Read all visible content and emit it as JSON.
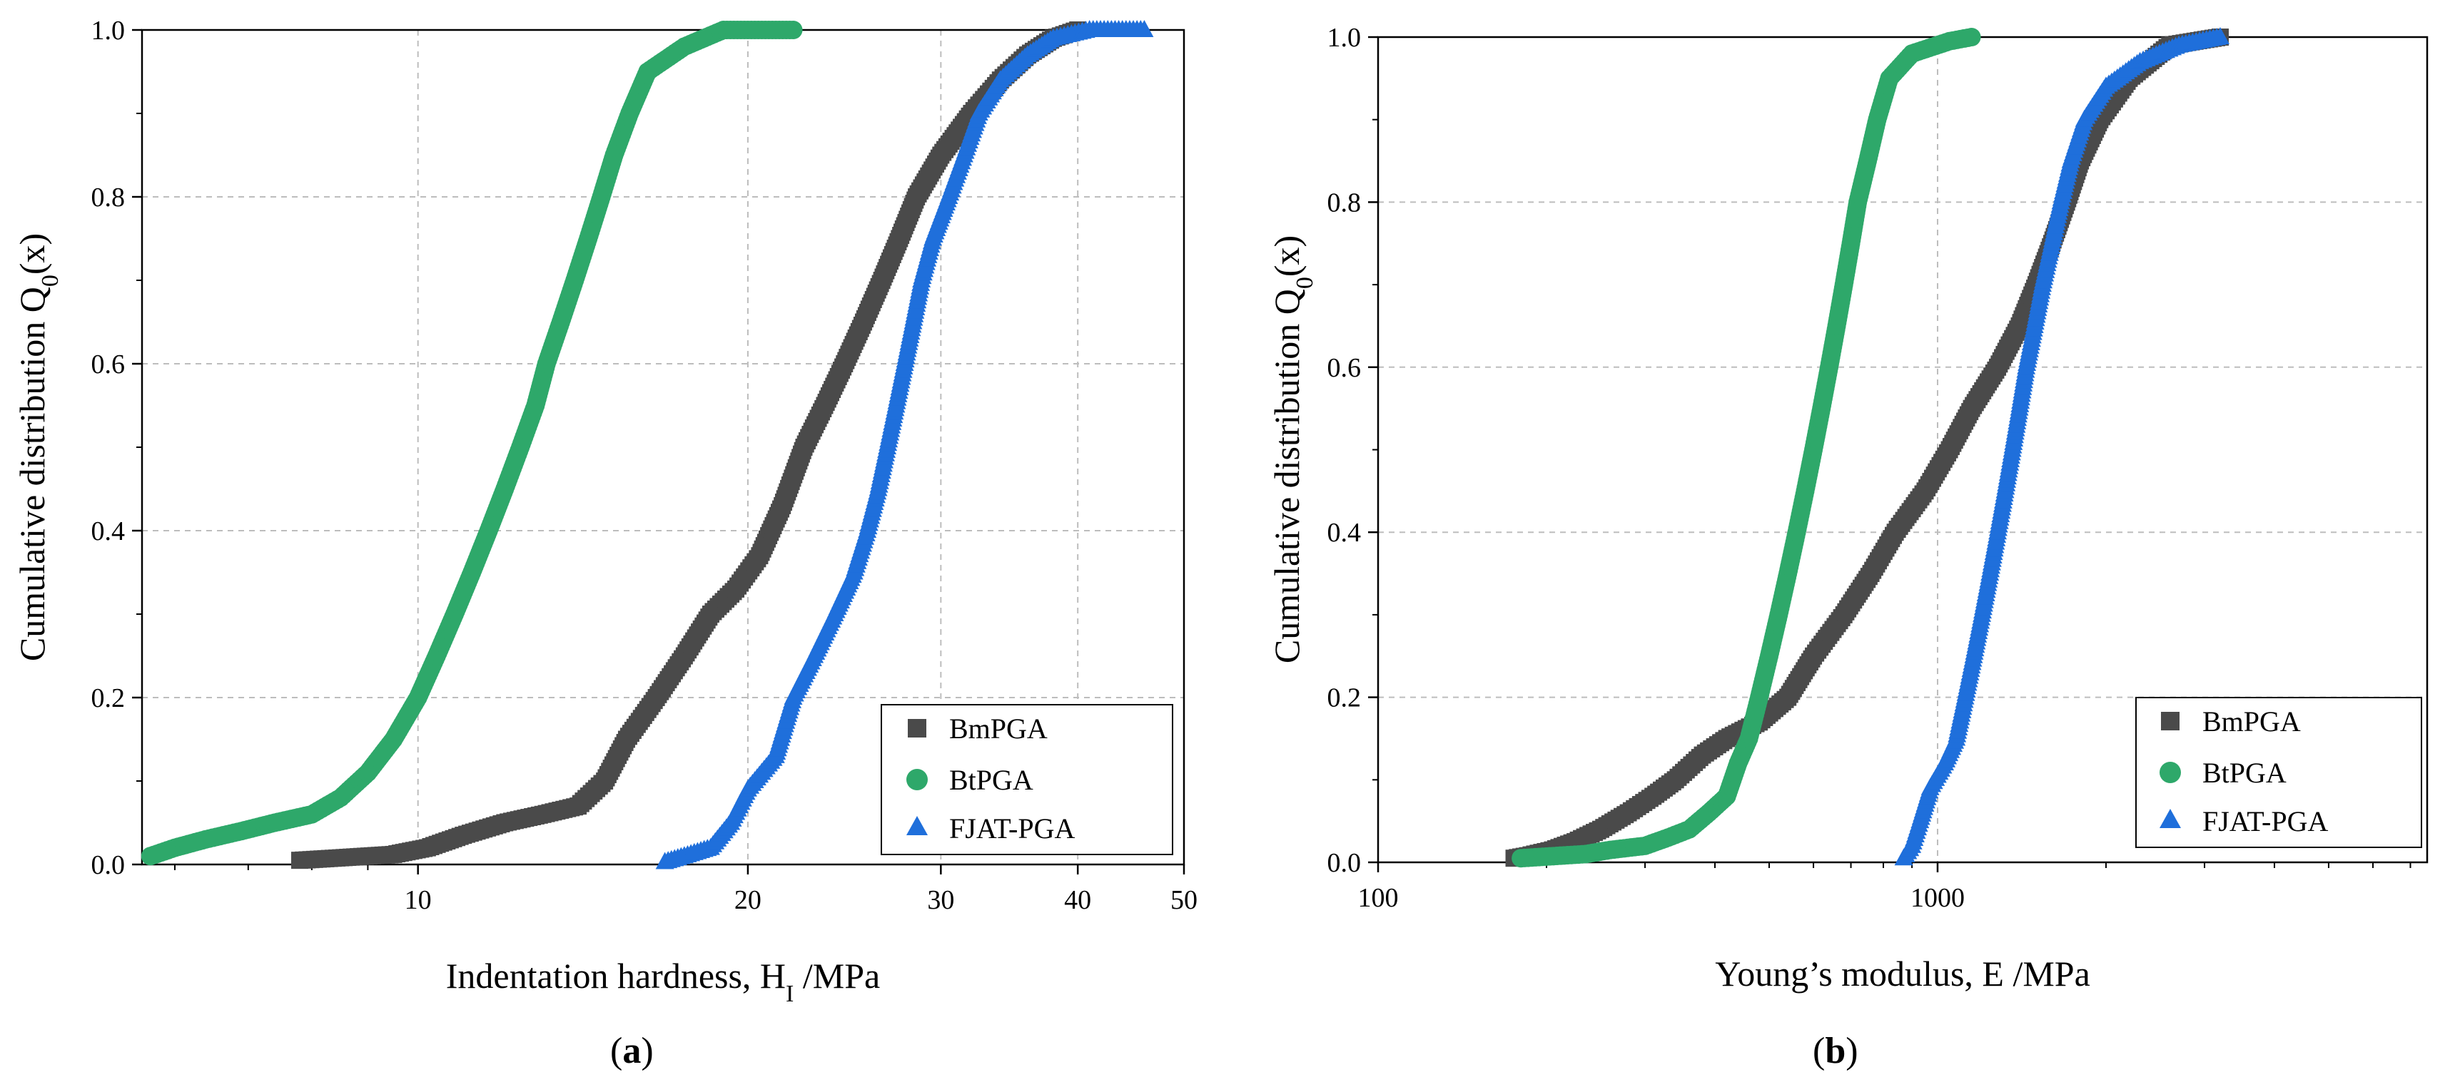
{
  "chart_data": [
    {
      "type": "scatter",
      "panel_label": "a",
      "xlabel_main": "Indentation hardness, H",
      "xlabel_sub": "I",
      "xlabel_unit": " /MPa",
      "ylabel_main": "Cumulative distribution Q",
      "ylabel_sub": "0",
      "ylabel_tail": "(x)",
      "x_scale": "log",
      "xlim": [
        5.6,
        50
      ],
      "ylim": [
        0,
        1
      ],
      "x_ticks": [
        10,
        20,
        30,
        40,
        50
      ],
      "x_tick_labels": [
        "10",
        "20",
        "30",
        "40",
        "50"
      ],
      "y_ticks": [
        0,
        0.2,
        0.4,
        0.6,
        0.8,
        1.0
      ],
      "y_tick_labels": [
        "0.0",
        "0.2",
        "0.4",
        "0.6",
        "0.8",
        "1.0"
      ],
      "grid": true,
      "legend_position": "bottom-right",
      "series": [
        {
          "name": "BmPGA",
          "marker": "square",
          "color": "#4a4a4a",
          "points": [
            [
              7.8,
              0.005
            ],
            [
              8.5,
              0.008
            ],
            [
              9.5,
              0.012
            ],
            [
              10.2,
              0.02
            ],
            [
              11,
              0.035
            ],
            [
              12,
              0.05
            ],
            [
              13,
              0.06
            ],
            [
              14,
              0.07
            ],
            [
              14.8,
              0.1
            ],
            [
              15.5,
              0.15
            ],
            [
              16.5,
              0.2
            ],
            [
              17.5,
              0.25
            ],
            [
              18.5,
              0.3
            ],
            [
              19.5,
              0.33
            ],
            [
              20.5,
              0.37
            ],
            [
              21.5,
              0.43
            ],
            [
              22.5,
              0.5
            ],
            [
              23.5,
              0.55
            ],
            [
              24.5,
              0.6
            ],
            [
              25.5,
              0.65
            ],
            [
              26.5,
              0.7
            ],
            [
              27.5,
              0.75
            ],
            [
              28.5,
              0.8
            ],
            [
              30,
              0.85
            ],
            [
              32,
              0.9
            ],
            [
              34,
              0.94
            ],
            [
              36,
              0.97
            ],
            [
              38,
              0.99
            ],
            [
              40,
              1.0
            ]
          ]
        },
        {
          "name": "BtPGA",
          "marker": "circle",
          "color": "#2ea86a",
          "points": [
            [
              5.7,
              0.01
            ],
            [
              6.0,
              0.02
            ],
            [
              6.4,
              0.03
            ],
            [
              6.9,
              0.04
            ],
            [
              7.4,
              0.05
            ],
            [
              8.0,
              0.06
            ],
            [
              8.5,
              0.08
            ],
            [
              9.0,
              0.11
            ],
            [
              9.5,
              0.15
            ],
            [
              10,
              0.2
            ],
            [
              10.4,
              0.25
            ],
            [
              10.8,
              0.3
            ],
            [
              11.2,
              0.35
            ],
            [
              11.6,
              0.4
            ],
            [
              12.0,
              0.45
            ],
            [
              12.4,
              0.5
            ],
            [
              12.8,
              0.55
            ],
            [
              13.1,
              0.6
            ],
            [
              13.5,
              0.65
            ],
            [
              13.9,
              0.7
            ],
            [
              14.3,
              0.75
            ],
            [
              14.7,
              0.8
            ],
            [
              15.1,
              0.85
            ],
            [
              15.6,
              0.9
            ],
            [
              16.2,
              0.95
            ],
            [
              17.5,
              0.98
            ],
            [
              19,
              1.0
            ],
            [
              22,
              1.0
            ]
          ]
        },
        {
          "name": "FJAT-PGA",
          "marker": "triangle",
          "color": "#1f6fdb",
          "points": [
            [
              16.8,
              0.003
            ],
            [
              17.5,
              0.01
            ],
            [
              18.5,
              0.02
            ],
            [
              19.3,
              0.05
            ],
            [
              20.0,
              0.09
            ],
            [
              21.2,
              0.13
            ],
            [
              22,
              0.2
            ],
            [
              23,
              0.25
            ],
            [
              24,
              0.3
            ],
            [
              25,
              0.35
            ],
            [
              25.7,
              0.4
            ],
            [
              26.3,
              0.45
            ],
            [
              26.8,
              0.5
            ],
            [
              27.3,
              0.55
            ],
            [
              27.8,
              0.6
            ],
            [
              28.3,
              0.65
            ],
            [
              28.8,
              0.7
            ],
            [
              29.5,
              0.75
            ],
            [
              30.5,
              0.8
            ],
            [
              31.5,
              0.85
            ],
            [
              32.5,
              0.9
            ],
            [
              34,
              0.94
            ],
            [
              36,
              0.97
            ],
            [
              38,
              0.99
            ],
            [
              41,
              1.0
            ],
            [
              46,
              1.0
            ]
          ]
        }
      ]
    },
    {
      "type": "scatter",
      "panel_label": "b",
      "xlabel": "Young’s modulus, E /MPa",
      "ylabel_main": "Cumulative distribution Q",
      "ylabel_sub": "0",
      "ylabel_tail": "(x)",
      "x_scale": "log",
      "xlim": [
        100,
        7500
      ],
      "ylim": [
        0,
        1
      ],
      "x_ticks": [
        100,
        1000
      ],
      "x_tick_labels": [
        "100",
        "1000"
      ],
      "y_ticks": [
        0,
        0.2,
        0.4,
        0.6,
        0.8,
        1.0
      ],
      "y_tick_labels": [
        "0.0",
        "0.2",
        "0.4",
        "0.6",
        "0.8",
        "1.0"
      ],
      "grid": true,
      "legend_position": "bottom-right",
      "series": [
        {
          "name": "BmPGA",
          "marker": "square",
          "color": "#4a4a4a",
          "points": [
            [
              175,
              0.005
            ],
            [
              185,
              0.008
            ],
            [
              205,
              0.015
            ],
            [
              225,
              0.025
            ],
            [
              250,
              0.04
            ],
            [
              280,
              0.06
            ],
            [
              310,
              0.08
            ],
            [
              340,
              0.1
            ],
            [
              380,
              0.13
            ],
            [
              420,
              0.15
            ],
            [
              480,
              0.17
            ],
            [
              540,
              0.2
            ],
            [
              600,
              0.25
            ],
            [
              680,
              0.3
            ],
            [
              760,
              0.35
            ],
            [
              840,
              0.4
            ],
            [
              950,
              0.45
            ],
            [
              1050,
              0.5
            ],
            [
              1150,
              0.55
            ],
            [
              1280,
              0.6
            ],
            [
              1400,
              0.65
            ],
            [
              1500,
              0.7
            ],
            [
              1600,
              0.75
            ],
            [
              1700,
              0.8
            ],
            [
              1800,
              0.85
            ],
            [
              1950,
              0.9
            ],
            [
              2200,
              0.95
            ],
            [
              2600,
              0.99
            ],
            [
              3200,
              1.0
            ]
          ]
        },
        {
          "name": "BtPGA",
          "marker": "circle",
          "color": "#2ea86a",
          "points": [
            [
              180,
              0.005
            ],
            [
              235,
              0.01
            ],
            [
              260,
              0.015
            ],
            [
              300,
              0.02
            ],
            [
              330,
              0.03
            ],
            [
              360,
              0.04
            ],
            [
              390,
              0.06
            ],
            [
              420,
              0.08
            ],
            [
              440,
              0.12
            ],
            [
              460,
              0.15
            ],
            [
              480,
              0.2
            ],
            [
              500,
              0.25
            ],
            [
              520,
              0.3
            ],
            [
              540,
              0.35
            ],
            [
              560,
              0.4
            ],
            [
              580,
              0.45
            ],
            [
              600,
              0.5
            ],
            [
              620,
              0.55
            ],
            [
              640,
              0.6
            ],
            [
              660,
              0.65
            ],
            [
              680,
              0.7
            ],
            [
              700,
              0.75
            ],
            [
              720,
              0.8
            ],
            [
              750,
              0.85
            ],
            [
              780,
              0.9
            ],
            [
              820,
              0.95
            ],
            [
              900,
              0.98
            ],
            [
              1050,
              0.995
            ],
            [
              1150,
              1.0
            ]
          ]
        },
        {
          "name": "FJAT-PGA",
          "marker": "triangle",
          "color": "#1f6fdb",
          "points": [
            [
              870,
              0.005
            ],
            [
              900,
              0.02
            ],
            [
              930,
              0.05
            ],
            [
              970,
              0.09
            ],
            [
              1030,
              0.12
            ],
            [
              1080,
              0.15
            ],
            [
              1120,
              0.2
            ],
            [
              1160,
              0.25
            ],
            [
              1200,
              0.3
            ],
            [
              1240,
              0.35
            ],
            [
              1280,
              0.4
            ],
            [
              1320,
              0.45
            ],
            [
              1360,
              0.5
            ],
            [
              1400,
              0.55
            ],
            [
              1440,
              0.6
            ],
            [
              1490,
              0.65
            ],
            [
              1540,
              0.7
            ],
            [
              1600,
              0.75
            ],
            [
              1660,
              0.8
            ],
            [
              1730,
              0.85
            ],
            [
              1830,
              0.9
            ],
            [
              2000,
              0.94
            ],
            [
              2300,
              0.97
            ],
            [
              2700,
              0.99
            ],
            [
              3200,
              1.0
            ]
          ]
        }
      ]
    }
  ]
}
